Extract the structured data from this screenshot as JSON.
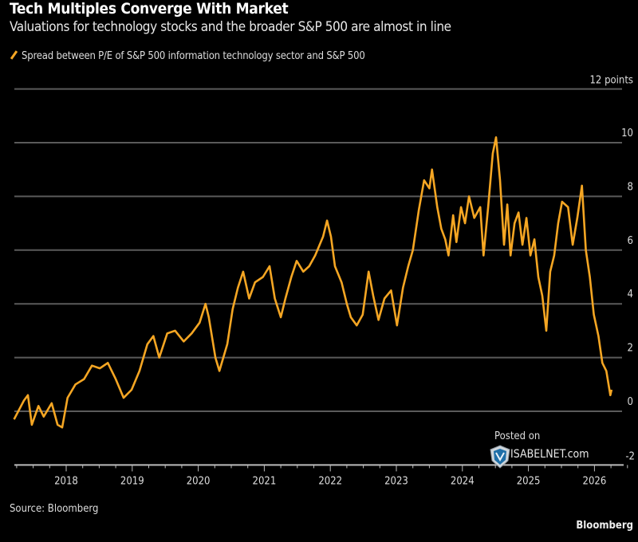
{
  "chart_data": {
    "type": "line",
    "title": "Tech Multiples Converge With Market",
    "subtitle": "Valuations for technology stocks and the broader S&P 500 are almost in line",
    "xlabel": "",
    "ylabel": "points",
    "y_unit_label": "12 points",
    "ylim": [
      -2,
      12
    ],
    "yticks": [
      12,
      10,
      8,
      6,
      4,
      2,
      0,
      -2
    ],
    "ytick_labels": [
      "12 points",
      "10",
      "8",
      "6",
      "4",
      "2",
      "0",
      "-2"
    ],
    "xlim": [
      2017.2,
      2026.4
    ],
    "xticks": [
      2018,
      2019,
      2020,
      2021,
      2022,
      2023,
      2024,
      2025,
      2026
    ],
    "xtick_labels": [
      "2018",
      "2019",
      "2020",
      "2021",
      "2022",
      "2023",
      "2024",
      "2025",
      "2026"
    ],
    "grid": true,
    "legend_position": "top-left",
    "series": [
      {
        "name": "Spread between P/E of S&P 500 information technology sector and S&P 500",
        "color": "#f5a623",
        "x": [
          2017.21,
          2017.36,
          2017.42,
          2017.48,
          2017.58,
          2017.66,
          2017.78,
          2017.87,
          2017.94,
          2018.02,
          2018.14,
          2018.27,
          2018.39,
          2018.51,
          2018.63,
          2018.75,
          2018.87,
          2018.99,
          2019.11,
          2019.23,
          2019.32,
          2019.41,
          2019.53,
          2019.65,
          2019.78,
          2019.9,
          2020.02,
          2020.11,
          2020.16,
          2020.26,
          2020.32,
          2020.44,
          2020.52,
          2020.6,
          2020.68,
          2020.77,
          2020.86,
          2020.98,
          2021.08,
          2021.16,
          2021.25,
          2021.32,
          2021.41,
          2021.49,
          2021.59,
          2021.68,
          2021.77,
          2021.89,
          2021.95,
          2022.01,
          2022.07,
          2022.17,
          2022.25,
          2022.31,
          2022.4,
          2022.49,
          2022.58,
          2022.65,
          2022.73,
          2022.82,
          2022.92,
          2023.01,
          2023.1,
          2023.18,
          2023.25,
          2023.34,
          2023.42,
          2023.5,
          2023.54,
          2023.62,
          2023.68,
          2023.74,
          2023.79,
          2023.86,
          2023.91,
          2023.98,
          2024.04,
          2024.1,
          2024.18,
          2024.27,
          2024.32,
          2024.39,
          2024.46,
          2024.51,
          2024.57,
          2024.63,
          2024.68,
          2024.73,
          2024.79,
          2024.85,
          2024.91,
          2024.97,
          2025.03,
          2025.09,
          2025.15,
          2025.21,
          2025.27,
          2025.33,
          2025.39,
          2025.45,
          2025.51,
          2025.6,
          2025.67,
          2025.74,
          2025.81,
          2025.87,
          2025.93,
          2025.99,
          2026.06,
          2026.12,
          2026.18,
          2026.24,
          2026.26
        ],
        "y": [
          -0.3,
          0.4,
          0.6,
          -0.5,
          0.2,
          -0.2,
          0.3,
          -0.5,
          -0.6,
          0.5,
          1.0,
          1.2,
          1.7,
          1.6,
          1.8,
          1.2,
          0.5,
          0.8,
          1.5,
          2.5,
          2.8,
          2.0,
          2.9,
          3.0,
          2.6,
          2.9,
          3.3,
          4.0,
          3.5,
          2.0,
          1.5,
          2.5,
          3.8,
          4.6,
          5.2,
          4.2,
          4.8,
          5.0,
          5.4,
          4.2,
          3.5,
          4.2,
          5.0,
          5.6,
          5.2,
          5.4,
          5.8,
          6.5,
          7.1,
          6.5,
          5.4,
          4.8,
          4.0,
          3.5,
          3.2,
          3.6,
          5.2,
          4.3,
          3.4,
          4.2,
          4.5,
          3.2,
          4.6,
          5.4,
          6.0,
          7.5,
          8.6,
          8.3,
          9.0,
          7.6,
          6.8,
          6.4,
          5.8,
          7.3,
          6.3,
          7.6,
          7.0,
          8.0,
          7.2,
          7.6,
          5.8,
          7.6,
          9.6,
          10.2,
          8.6,
          6.2,
          7.7,
          5.8,
          7.0,
          7.4,
          6.2,
          7.2,
          5.8,
          6.4,
          5.0,
          4.3,
          3.0,
          5.2,
          5.8,
          7.0,
          7.8,
          7.6,
          6.2,
          7.2,
          8.4,
          6.0,
          5.0,
          3.6,
          2.8,
          1.8,
          1.5,
          0.6,
          0.8
        ]
      }
    ]
  },
  "source": "Source: Bloomberg",
  "brand": "Bloomberg",
  "watermark": {
    "posted": "Posted on",
    "site": "ISABELNET.com"
  }
}
